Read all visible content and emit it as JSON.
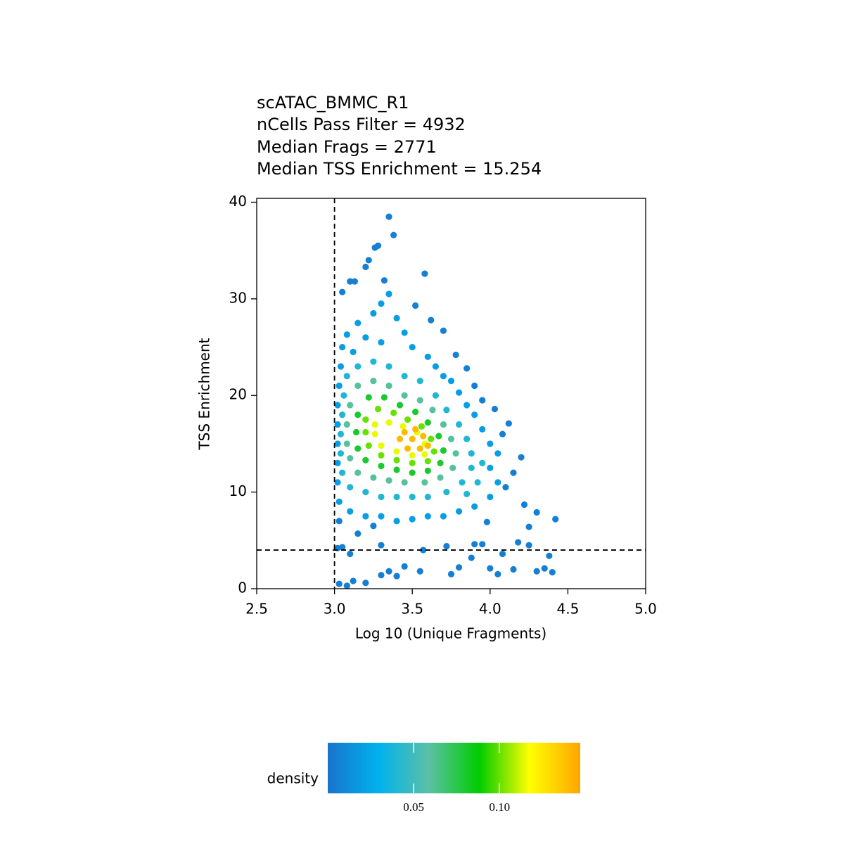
{
  "chart_data": {
    "type": "scatter",
    "title_lines": [
      "scATAC_BMMC_R1",
      "nCells Pass Filter = 4932",
      "Median Frags = 2771",
      "Median TSS Enrichment = 15.254"
    ],
    "x_label": "Log 10 (Unique Fragments)",
    "y_label": "TSS Enrichment",
    "xlim": [
      2.5,
      5.0
    ],
    "ylim": [
      0,
      40.4
    ],
    "xticks": [
      2.5,
      {
        "value": 3,
        "label": "3.0"
      },
      3.5,
      {
        "value": 4,
        "label": "4.0"
      },
      4.5,
      {
        "value": 5,
        "label": "5.0"
      }
    ],
    "yticks": [
      0,
      10,
      20,
      30,
      40
    ],
    "vlines": [
      3
    ],
    "hlines": [
      4
    ],
    "colorbar": {
      "title": "density",
      "lim": [
        0,
        0.147
      ],
      "ticks": [
        0.05,
        {
          "value": 0.1,
          "label": "0.10"
        }
      ],
      "colors": [
        "#1874CD",
        "#00B2EE",
        "#5BC0A6",
        "#00CD00",
        "#FFFF00",
        "#FFA500"
      ]
    },
    "series": [
      {
        "density": 0.005,
        "x": [
          3.35,
          3.38,
          3.28,
          3.26,
          3.22,
          3.2,
          3.58,
          3.1,
          3.13,
          3.32,
          3.05,
          3.52,
          3.7,
          3.62,
          3.78,
          3.85,
          3.9,
          3.95,
          4.03,
          4.12,
          4.08,
          4.2,
          4.15,
          4.1,
          4.22,
          4.3,
          4.42,
          4.25,
          3.98,
          3.03,
          3.02,
          3.05,
          3.1,
          3.03,
          3.08,
          3.12,
          3.2,
          3.3,
          3.35,
          3.4,
          3.45,
          3.55,
          3.57,
          3.72,
          3.75,
          3.8,
          3.88,
          3.9,
          3.95,
          4.0,
          4.05,
          4.08,
          4.15,
          4.18,
          4.25,
          4.3,
          4.35,
          4.4,
          4.38,
          3.25,
          3.3,
          3.15
        ],
        "y": [
          38.5,
          36.6,
          35.5,
          35.3,
          34,
          33.3,
          32.6,
          31.8,
          31.8,
          31.9,
          30.7,
          29.3,
          26.7,
          27.8,
          24.2,
          22.8,
          21,
          19.5,
          18.6,
          17.1,
          16,
          13.6,
          12,
          10.5,
          8.7,
          7.9,
          7.2,
          6.4,
          6.9,
          7.0,
          4.2,
          4.3,
          3.6,
          0.5,
          0.3,
          0.8,
          0.6,
          1.4,
          1.8,
          1.3,
          2.3,
          1.8,
          4.0,
          4.4,
          1.5,
          2.2,
          3.2,
          4.6,
          4.6,
          2.1,
          1.5,
          3.6,
          2.0,
          4.8,
          4.5,
          1.8,
          2.1,
          1.7,
          3.4,
          6.5,
          4.5,
          5.7
        ]
      },
      {
        "density": 0.02,
        "x": [
          3.05,
          3.08,
          3.15,
          3.25,
          3.3,
          3.35,
          3.4,
          3.45,
          3.5,
          3.6,
          3.65,
          3.7,
          3.75,
          3.8,
          3.85,
          3.9,
          3.95,
          4.0,
          4.05,
          4.0,
          4.05,
          4.0,
          3.9,
          3.8,
          3.7,
          3.6,
          3.5,
          3.4,
          3.3,
          3.2,
          3.1,
          3.03,
          3.02,
          3.02,
          3.02,
          3.02,
          3.02,
          3.03,
          3.04,
          3.2,
          3.3,
          3.12
        ],
        "y": [
          25,
          26.3,
          27.5,
          28.5,
          29.5,
          30.5,
          28,
          26.5,
          25,
          24,
          23,
          22,
          21.5,
          20.3,
          19,
          18,
          16.5,
          15,
          14,
          12.5,
          11,
          9.5,
          8.5,
          8,
          7.5,
          7.5,
          7.2,
          7,
          7.5,
          7.5,
          8,
          9,
          11,
          13,
          15,
          17,
          19,
          21,
          23,
          26,
          25.5,
          24.5
        ]
      },
      {
        "density": 0.04,
        "x": [
          3.08,
          3.15,
          3.25,
          3.35,
          3.45,
          3.55,
          3.65,
          3.72,
          3.8,
          3.85,
          3.88,
          3.88,
          3.82,
          3.72,
          3.6,
          3.5,
          3.4,
          3.3,
          3.2,
          3.1,
          3.05,
          3.04,
          3.04,
          3.05,
          3.06,
          3.95,
          3.92,
          3.85
        ],
        "y": [
          22,
          23,
          23.5,
          23,
          22,
          21.5,
          20,
          18.5,
          17,
          15.5,
          14,
          12.5,
          11,
          10,
          9.5,
          9.5,
          9.5,
          9.5,
          10,
          10.5,
          12,
          14,
          16,
          18,
          20,
          13,
          11,
          9.8
        ]
      },
      {
        "density": 0.06,
        "x": [
          3.1,
          3.15,
          3.25,
          3.35,
          3.45,
          3.55,
          3.63,
          3.7,
          3.75,
          3.78,
          3.76,
          3.68,
          3.58,
          3.45,
          3.35,
          3.25,
          3.15,
          3.1,
          3.08,
          3.08
        ],
        "y": [
          19,
          21,
          21.5,
          21,
          20,
          19.5,
          18.5,
          17,
          15.5,
          14,
          12.5,
          11.5,
          11,
          11,
          11.2,
          11.5,
          12,
          13.5,
          15,
          17
        ]
      },
      {
        "density": 0.08,
        "x": [
          3.15,
          3.22,
          3.32,
          3.42,
          3.52,
          3.6,
          3.67,
          3.7,
          3.68,
          3.6,
          3.5,
          3.4,
          3.3,
          3.2,
          3.15,
          3.14
        ],
        "y": [
          18,
          19.8,
          19.8,
          19,
          18.3,
          17.2,
          15.8,
          14.3,
          13,
          12.2,
          12,
          12.3,
          12.7,
          13.3,
          14.5,
          16.2
        ]
      },
      {
        "density": 0.1,
        "x": [
          3.2,
          3.28,
          3.38,
          3.47,
          3.56,
          3.62,
          3.64,
          3.6,
          3.5,
          3.4,
          3.3,
          3.22,
          3.2
        ],
        "y": [
          17.5,
          18.6,
          18.2,
          17.5,
          16.8,
          15.5,
          14.2,
          13.2,
          13,
          13.3,
          13.8,
          14.8,
          16.2
        ]
      },
      {
        "density": 0.115,
        "x": [
          3.26,
          3.35,
          3.44,
          3.53,
          3.58,
          3.58,
          3.5,
          3.4,
          3.3,
          3.26
        ],
        "y": [
          17,
          17.2,
          16.8,
          16.2,
          15,
          13.9,
          13.8,
          14.2,
          14.8,
          16
        ]
      },
      {
        "density": 0.14,
        "x": [
          3.5,
          3.55,
          3.47,
          3.42,
          3.52,
          3.6,
          3.45,
          3.57
        ],
        "y": [
          15.5,
          14.5,
          14.5,
          15.5,
          16.5,
          14.8,
          16.2,
          15.8
        ]
      }
    ]
  }
}
